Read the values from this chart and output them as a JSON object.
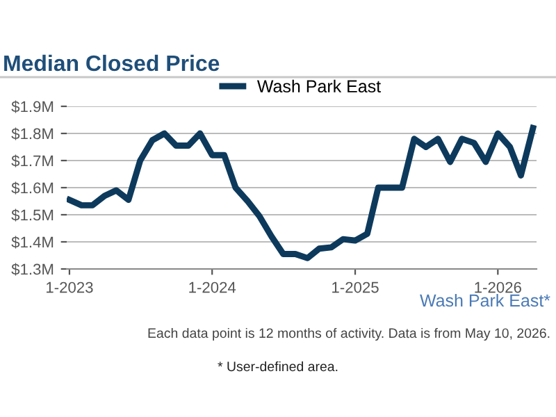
{
  "chart_data": {
    "type": "line",
    "title": "Median Closed Price",
    "x": [
      "2023-01",
      "2023-02",
      "2023-03",
      "2023-04",
      "2023-05",
      "2023-06",
      "2023-07",
      "2023-08",
      "2023-09",
      "2023-10",
      "2023-11",
      "2023-12",
      "2024-01",
      "2024-02",
      "2024-03",
      "2024-04",
      "2024-05",
      "2024-06",
      "2024-07",
      "2024-08",
      "2024-09",
      "2024-10",
      "2024-11",
      "2024-12",
      "2025-01",
      "2025-02",
      "2025-03",
      "2025-04",
      "2025-05",
      "2025-06",
      "2025-07",
      "2025-08",
      "2025-09",
      "2025-10",
      "2025-11",
      "2025-12",
      "2026-01",
      "2026-02",
      "2026-03",
      "2026-04"
    ],
    "series": [
      {
        "name": "Wash Park East",
        "color": "#0d3a5c",
        "values": [
          1.555,
          1.535,
          1.535,
          1.57,
          1.59,
          1.555,
          1.7,
          1.775,
          1.8,
          1.755,
          1.755,
          1.8,
          1.72,
          1.72,
          1.6,
          1.55,
          1.495,
          1.42,
          1.355,
          1.355,
          1.34,
          1.375,
          1.38,
          1.41,
          1.405,
          1.43,
          1.6,
          1.6,
          1.6,
          1.78,
          1.75,
          1.78,
          1.695,
          1.78,
          1.765,
          1.695,
          1.8,
          1.75,
          1.645,
          1.82
        ]
      }
    ],
    "xlim": [
      "2022-12-25",
      "2026-04-10"
    ],
    "xticks": [
      {
        "value": "2023-01",
        "label": "1-2023"
      },
      {
        "value": "2024-01",
        "label": "1-2024"
      },
      {
        "value": "2025-01",
        "label": "1-2025"
      },
      {
        "value": "2026-01",
        "label": "1-2026"
      }
    ],
    "ylim": [
      1.3,
      1.9
    ],
    "yticks": [
      {
        "value": 1.3,
        "label": "$1.3M"
      },
      {
        "value": 1.4,
        "label": "$1.4M"
      },
      {
        "value": 1.5,
        "label": "$1.5M"
      },
      {
        "value": 1.6,
        "label": "$1.6M"
      },
      {
        "value": 1.7,
        "label": "$1.7M"
      },
      {
        "value": 1.8,
        "label": "$1.8M"
      },
      {
        "value": 1.9,
        "label": "$1.9M"
      }
    ],
    "grid": "y",
    "legend": "top",
    "marker": "none",
    "line_style": "solid",
    "annotations": [
      "Wash Park East*",
      "Each data point is 12 months of activity. Data is from May 10, 2026.",
      "* User-defined area."
    ]
  }
}
